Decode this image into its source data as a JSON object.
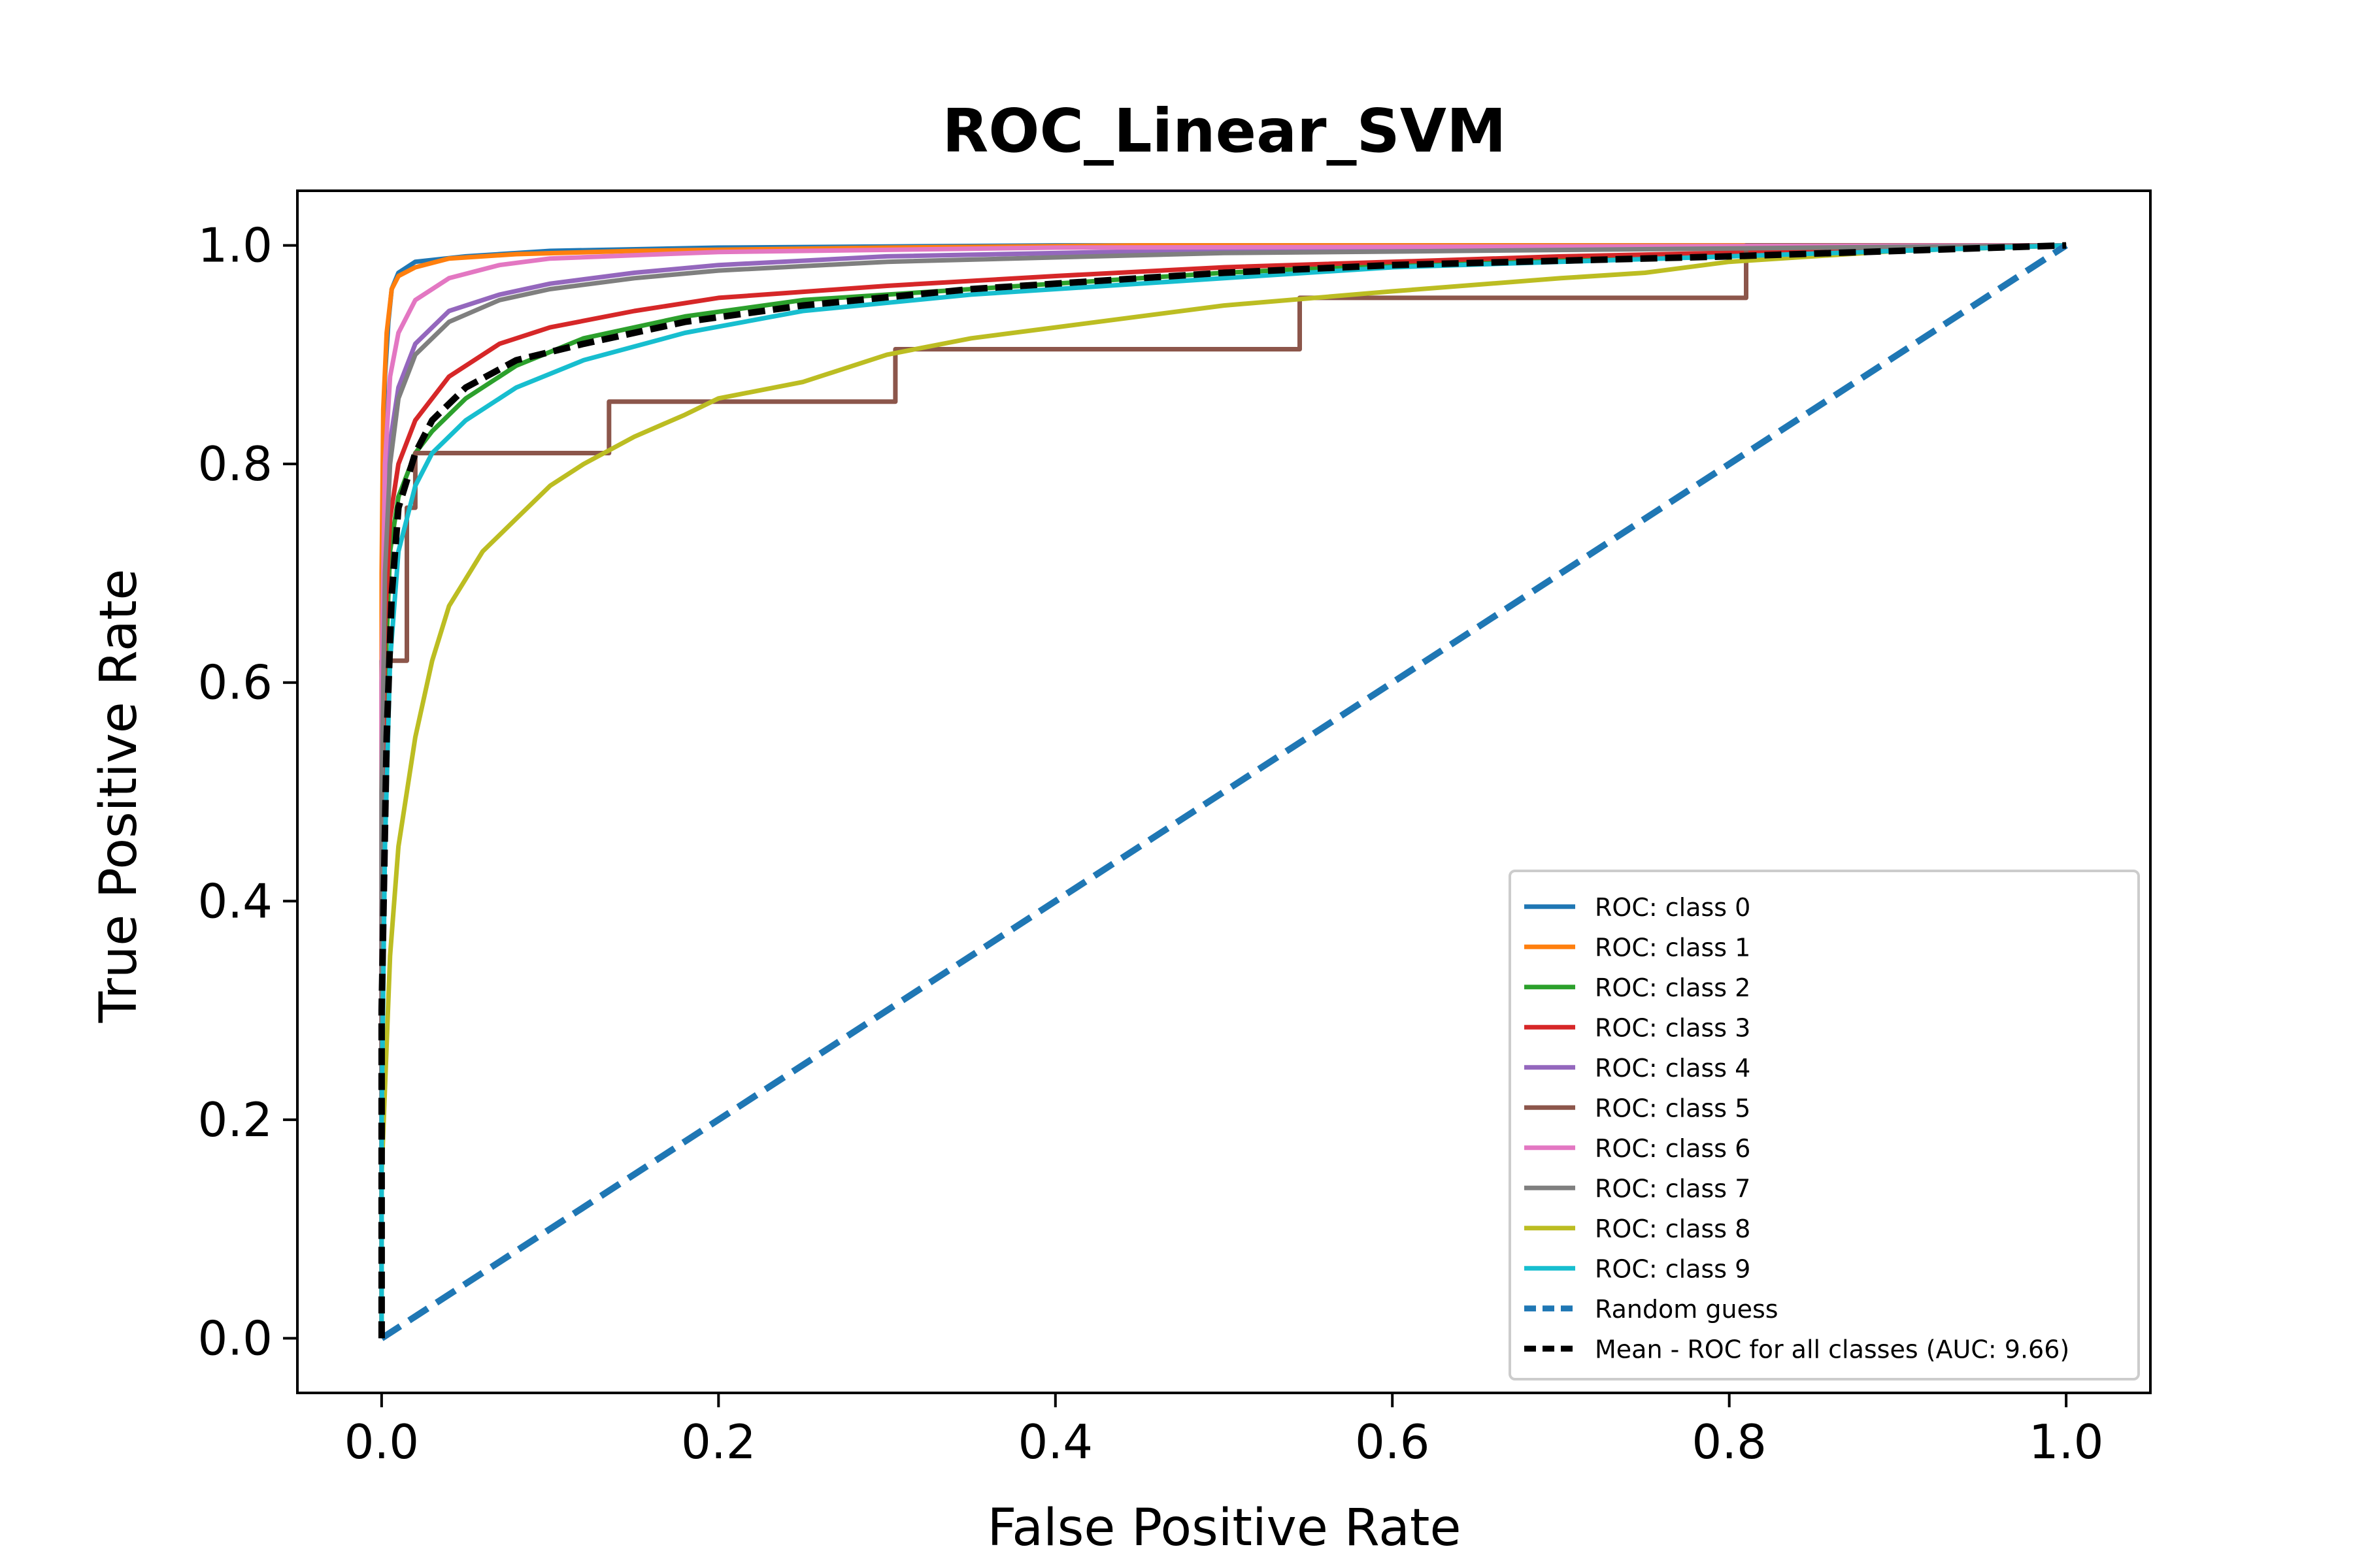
{
  "chart_data": {
    "type": "line",
    "title": "ROC_Linear_SVM",
    "xlabel": "False Positive Rate",
    "ylabel": "True Positive Rate",
    "xlim": [
      -0.05,
      1.05
    ],
    "ylim": [
      -0.05,
      1.05
    ],
    "xticks": [
      "0.0",
      "0.2",
      "0.4",
      "0.6",
      "0.8",
      "1.0"
    ],
    "yticks": [
      "0.0",
      "0.2",
      "0.4",
      "0.6",
      "0.8",
      "1.0"
    ],
    "grid": false,
    "legend_position": "lower-right",
    "series": [
      {
        "name": "ROC: class 0",
        "color": "#1f77b4",
        "style": "solid",
        "points": [
          [
            0,
            0
          ],
          [
            0,
            0.6
          ],
          [
            0.001,
            0.8
          ],
          [
            0.002,
            0.88
          ],
          [
            0.004,
            0.93
          ],
          [
            0.006,
            0.96
          ],
          [
            0.01,
            0.975
          ],
          [
            0.02,
            0.985
          ],
          [
            0.05,
            0.99
          ],
          [
            0.1,
            0.995
          ],
          [
            0.2,
            0.998
          ],
          [
            0.4,
            1.0
          ],
          [
            1.0,
            1.0
          ]
        ]
      },
      {
        "name": "ROC: class 1",
        "color": "#ff7f0e",
        "style": "solid",
        "points": [
          [
            0,
            0
          ],
          [
            0,
            0.7
          ],
          [
            0.001,
            0.85
          ],
          [
            0.003,
            0.92
          ],
          [
            0.006,
            0.96
          ],
          [
            0.01,
            0.972
          ],
          [
            0.02,
            0.98
          ],
          [
            0.04,
            0.988
          ],
          [
            0.08,
            0.992
          ],
          [
            0.15,
            0.995
          ],
          [
            0.3,
            0.998
          ],
          [
            0.45,
            1.0
          ],
          [
            1.0,
            1.0
          ]
        ]
      },
      {
        "name": "ROC: class 2",
        "color": "#2ca02c",
        "style": "solid",
        "points": [
          [
            0,
            0
          ],
          [
            0,
            0.3
          ],
          [
            0.002,
            0.6
          ],
          [
            0.005,
            0.72
          ],
          [
            0.01,
            0.77
          ],
          [
            0.02,
            0.81
          ],
          [
            0.03,
            0.83
          ],
          [
            0.05,
            0.86
          ],
          [
            0.08,
            0.89
          ],
          [
            0.12,
            0.915
          ],
          [
            0.18,
            0.935
          ],
          [
            0.25,
            0.95
          ],
          [
            0.35,
            0.96
          ],
          [
            0.5,
            0.975
          ],
          [
            0.6,
            0.982
          ],
          [
            0.8,
            0.99
          ],
          [
            1.0,
            1.0
          ]
        ]
      },
      {
        "name": "ROC: class 3",
        "color": "#d62728",
        "style": "solid",
        "points": [
          [
            0,
            0
          ],
          [
            0,
            0.4
          ],
          [
            0.002,
            0.65
          ],
          [
            0.005,
            0.75
          ],
          [
            0.01,
            0.8
          ],
          [
            0.02,
            0.84
          ],
          [
            0.04,
            0.88
          ],
          [
            0.07,
            0.91
          ],
          [
            0.1,
            0.925
          ],
          [
            0.15,
            0.94
          ],
          [
            0.2,
            0.952
          ],
          [
            0.3,
            0.963
          ],
          [
            0.4,
            0.972
          ],
          [
            0.5,
            0.98
          ],
          [
            0.7,
            0.99
          ],
          [
            1.0,
            1.0
          ]
        ]
      },
      {
        "name": "ROC: class 4",
        "color": "#9467bd",
        "style": "solid",
        "points": [
          [
            0,
            0
          ],
          [
            0,
            0.5
          ],
          [
            0.002,
            0.72
          ],
          [
            0.005,
            0.82
          ],
          [
            0.01,
            0.87
          ],
          [
            0.02,
            0.91
          ],
          [
            0.04,
            0.94
          ],
          [
            0.07,
            0.955
          ],
          [
            0.1,
            0.965
          ],
          [
            0.15,
            0.975
          ],
          [
            0.2,
            0.982
          ],
          [
            0.3,
            0.99
          ],
          [
            0.5,
            0.996
          ],
          [
            1.0,
            1.0
          ]
        ]
      },
      {
        "name": "ROC: class 5",
        "color": "#8c564b",
        "style": "solid",
        "points": [
          [
            0,
            0
          ],
          [
            0,
            0.62
          ],
          [
            0.015,
            0.62
          ],
          [
            0.015,
            0.76
          ],
          [
            0.02,
            0.76
          ],
          [
            0.02,
            0.81
          ],
          [
            0.135,
            0.81
          ],
          [
            0.135,
            0.857
          ],
          [
            0.305,
            0.857
          ],
          [
            0.305,
            0.905
          ],
          [
            0.545,
            0.905
          ],
          [
            0.545,
            0.952
          ],
          [
            0.81,
            0.952
          ],
          [
            0.81,
            1.0
          ],
          [
            1.0,
            1.0
          ]
        ]
      },
      {
        "name": "ROC: class 6",
        "color": "#e377c2",
        "style": "solid",
        "points": [
          [
            0,
            0
          ],
          [
            0,
            0.6
          ],
          [
            0.002,
            0.8
          ],
          [
            0.005,
            0.88
          ],
          [
            0.01,
            0.92
          ],
          [
            0.02,
            0.95
          ],
          [
            0.04,
            0.97
          ],
          [
            0.07,
            0.982
          ],
          [
            0.1,
            0.988
          ],
          [
            0.2,
            0.994
          ],
          [
            0.4,
            0.998
          ],
          [
            1.0,
            1.0
          ]
        ]
      },
      {
        "name": "ROC: class 7",
        "color": "#7f7f7f",
        "style": "solid",
        "points": [
          [
            0,
            0
          ],
          [
            0,
            0.5
          ],
          [
            0.002,
            0.7
          ],
          [
            0.005,
            0.8
          ],
          [
            0.01,
            0.86
          ],
          [
            0.02,
            0.9
          ],
          [
            0.04,
            0.93
          ],
          [
            0.07,
            0.95
          ],
          [
            0.1,
            0.96
          ],
          [
            0.15,
            0.97
          ],
          [
            0.2,
            0.977
          ],
          [
            0.3,
            0.985
          ],
          [
            0.5,
            0.993
          ],
          [
            1.0,
            1.0
          ]
        ]
      },
      {
        "name": "ROC: class 8",
        "color": "#bcbd22",
        "style": "solid",
        "points": [
          [
            0,
            0
          ],
          [
            0,
            0.15
          ],
          [
            0.005,
            0.35
          ],
          [
            0.01,
            0.45
          ],
          [
            0.02,
            0.55
          ],
          [
            0.03,
            0.62
          ],
          [
            0.04,
            0.67
          ],
          [
            0.06,
            0.72
          ],
          [
            0.08,
            0.75
          ],
          [
            0.1,
            0.78
          ],
          [
            0.12,
            0.8
          ],
          [
            0.15,
            0.825
          ],
          [
            0.18,
            0.845
          ],
          [
            0.2,
            0.86
          ],
          [
            0.25,
            0.875
          ],
          [
            0.3,
            0.9
          ],
          [
            0.35,
            0.915
          ],
          [
            0.4,
            0.925
          ],
          [
            0.5,
            0.945
          ],
          [
            0.6,
            0.958
          ],
          [
            0.7,
            0.97
          ],
          [
            0.75,
            0.975
          ],
          [
            0.8,
            0.985
          ],
          [
            0.9,
            0.995
          ],
          [
            1.0,
            1.0
          ]
        ]
      },
      {
        "name": "ROC: class 9",
        "color": "#17becf",
        "style": "solid",
        "points": [
          [
            0,
            0
          ],
          [
            0,
            0.2
          ],
          [
            0.002,
            0.45
          ],
          [
            0.005,
            0.62
          ],
          [
            0.01,
            0.72
          ],
          [
            0.02,
            0.78
          ],
          [
            0.03,
            0.81
          ],
          [
            0.05,
            0.84
          ],
          [
            0.08,
            0.87
          ],
          [
            0.12,
            0.895
          ],
          [
            0.18,
            0.92
          ],
          [
            0.25,
            0.94
          ],
          [
            0.35,
            0.955
          ],
          [
            0.5,
            0.97
          ],
          [
            0.6,
            0.98
          ],
          [
            0.8,
            0.99
          ],
          [
            1.0,
            1.0
          ]
        ]
      },
      {
        "name": "Random guess",
        "color": "#1f77b4",
        "style": "dashed",
        "points": [
          [
            0,
            0
          ],
          [
            1,
            1
          ]
        ]
      },
      {
        "name": "Mean - ROC for all classes (AUC: 9.66)",
        "color": "#000000",
        "style": "dashed",
        "points": [
          [
            0,
            0
          ],
          [
            0,
            0.3
          ],
          [
            0.003,
            0.55
          ],
          [
            0.006,
            0.68
          ],
          [
            0.01,
            0.76
          ],
          [
            0.02,
            0.81
          ],
          [
            0.03,
            0.84
          ],
          [
            0.05,
            0.87
          ],
          [
            0.08,
            0.895
          ],
          [
            0.12,
            0.91
          ],
          [
            0.18,
            0.93
          ],
          [
            0.25,
            0.945
          ],
          [
            0.35,
            0.96
          ],
          [
            0.5,
            0.975
          ],
          [
            0.6,
            0.982
          ],
          [
            0.8,
            0.99
          ],
          [
            1.0,
            1.0
          ]
        ]
      }
    ]
  }
}
